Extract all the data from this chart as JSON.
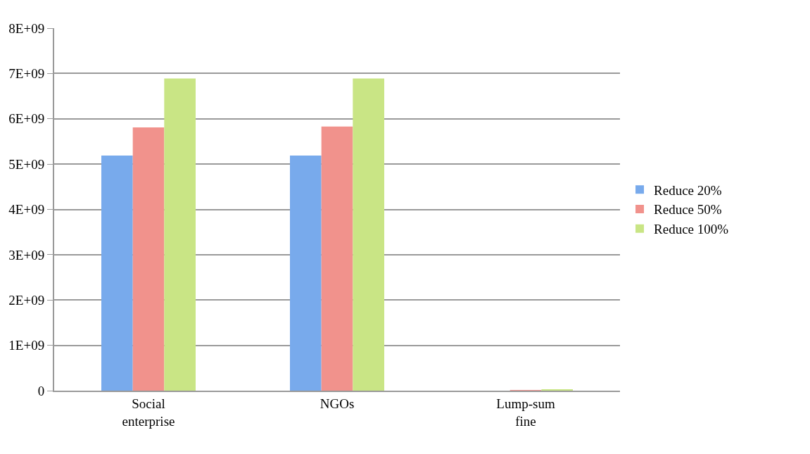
{
  "chart_data": {
    "type": "bar",
    "categories": [
      "Social\nenterprise",
      "NGOs",
      "Lump-sum\nfine"
    ],
    "series": [
      {
        "name": "Reduce 20%",
        "color": "#78aaec",
        "values": [
          5190000000.0,
          5190000000.0,
          0
        ]
      },
      {
        "name": "Reduce 50%",
        "color": "#f1928c",
        "values": [
          5810000000.0,
          5830000000.0,
          10000000.0
        ]
      },
      {
        "name": "Reduce 100%",
        "color": "#c9e585",
        "values": [
          6890000000.0,
          6890000000.0,
          30000000.0
        ]
      }
    ],
    "ylim": [
      0,
      8000000000.0
    ],
    "yticks": [
      {
        "value": 0,
        "label": "0"
      },
      {
        "value": 1000000000.0,
        "label": "1E+09"
      },
      {
        "value": 2000000000.0,
        "label": "2E+09"
      },
      {
        "value": 3000000000.0,
        "label": "3E+09"
      },
      {
        "value": 4000000000.0,
        "label": "4E+09"
      },
      {
        "value": 5000000000.0,
        "label": "5E+09"
      },
      {
        "value": 6000000000.0,
        "label": "6E+09"
      },
      {
        "value": 7000000000.0,
        "label": "7E+09"
      },
      {
        "value": 8000000000.0,
        "label": "8E+09"
      }
    ],
    "grid": "y",
    "legend": "right"
  }
}
